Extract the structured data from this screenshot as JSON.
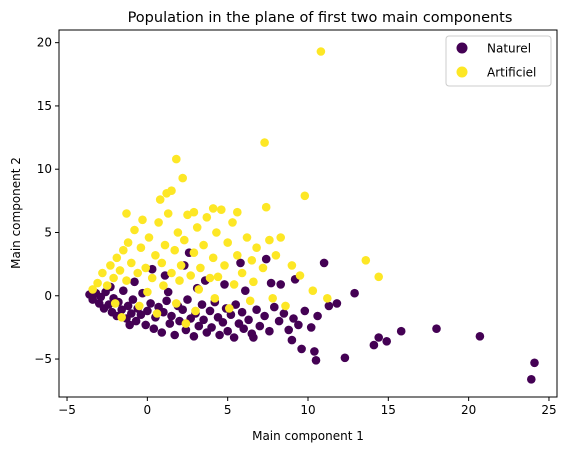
{
  "chart_data": {
    "type": "scatter",
    "title": "Population in the plane of first two main components",
    "xlabel": "Main component 1",
    "ylabel": "Main component 2",
    "xlim": [
      -5.5,
      25.5
    ],
    "ylim": [
      -8,
      21
    ],
    "xticks": [
      -5,
      0,
      5,
      10,
      15,
      20,
      25
    ],
    "yticks": [
      -5,
      0,
      5,
      10,
      15,
      20
    ],
    "grid": false,
    "legend_position": "top-right",
    "series": [
      {
        "name": "Naturel",
        "color": "#440154",
        "points": [
          [
            -3.6,
            0.1
          ],
          [
            -3.4,
            -0.3
          ],
          [
            -3.2,
            0.2
          ],
          [
            -3.0,
            -0.6
          ],
          [
            -2.9,
            -0.1
          ],
          [
            -2.7,
            -1.0
          ],
          [
            -2.6,
            0.3
          ],
          [
            -2.4,
            -0.7
          ],
          [
            -2.2,
            -1.3
          ],
          [
            -2.1,
            -0.2
          ],
          [
            -1.9,
            -1.6
          ],
          [
            -1.8,
            -0.5
          ],
          [
            -1.6,
            -1.1
          ],
          [
            -1.5,
            0.4
          ],
          [
            -1.3,
            -1.8
          ],
          [
            -1.2,
            -0.8
          ],
          [
            -1.0,
            -1.4
          ],
          [
            -0.9,
            -0.3
          ],
          [
            -0.7,
            -2.0
          ],
          [
            -0.6,
            -1.0
          ],
          [
            -0.4,
            -1.5
          ],
          [
            -0.3,
            0.2
          ],
          [
            -0.1,
            -2.3
          ],
          [
            0.0,
            -1.2
          ],
          [
            0.2,
            -0.6
          ],
          [
            0.4,
            -2.6
          ],
          [
            0.5,
            -1.7
          ],
          [
            0.7,
            -0.9
          ],
          [
            0.9,
            -2.9
          ],
          [
            1.0,
            -1.3
          ],
          [
            1.2,
            -0.4
          ],
          [
            1.4,
            -2.2
          ],
          [
            1.5,
            -1.6
          ],
          [
            1.7,
            -3.1
          ],
          [
            1.9,
            -0.8
          ],
          [
            2.0,
            -2.0
          ],
          [
            2.2,
            -1.1
          ],
          [
            2.4,
            -2.7
          ],
          [
            2.5,
            -0.3
          ],
          [
            2.7,
            -1.8
          ],
          [
            2.9,
            -3.2
          ],
          [
            3.0,
            -1.4
          ],
          [
            3.2,
            -2.4
          ],
          [
            3.4,
            -0.7
          ],
          [
            3.5,
            -1.9
          ],
          [
            3.7,
            -2.9
          ],
          [
            3.9,
            -1.2
          ],
          [
            4.0,
            -2.5
          ],
          [
            4.2,
            -0.5
          ],
          [
            4.4,
            -1.7
          ],
          [
            4.5,
            -3.1
          ],
          [
            4.7,
            -2.1
          ],
          [
            4.9,
            -1.0
          ],
          [
            5.0,
            -2.8
          ],
          [
            5.2,
            -1.5
          ],
          [
            5.4,
            -3.3
          ],
          [
            5.5,
            -0.7
          ],
          [
            5.7,
            -2.2
          ],
          [
            5.9,
            -1.3
          ],
          [
            6.0,
            -2.6
          ],
          [
            6.3,
            -1.9
          ],
          [
            6.5,
            -3.0
          ],
          [
            6.8,
            -1.1
          ],
          [
            7.0,
            -2.4
          ],
          [
            7.3,
            -1.6
          ],
          [
            7.6,
            -2.8
          ],
          [
            7.9,
            -0.9
          ],
          [
            8.2,
            -2.0
          ],
          [
            8.5,
            -1.4
          ],
          [
            8.8,
            -2.7
          ],
          [
            9.1,
            -1.8
          ],
          [
            9.4,
            -2.3
          ],
          [
            9.8,
            -1.2
          ],
          [
            10.2,
            -2.5
          ],
          [
            10.6,
            -1.6
          ],
          [
            6.6,
            -3.3
          ],
          [
            9.0,
            -3.5
          ],
          [
            9.6,
            -4.2
          ],
          [
            10.5,
            -5.1
          ],
          [
            10.4,
            -4.4
          ],
          [
            8.3,
            0.9
          ],
          [
            9.2,
            1.3
          ],
          [
            11.0,
            2.6
          ],
          [
            11.3,
            -0.8
          ],
          [
            11.8,
            -0.6
          ],
          [
            12.3,
            -4.9
          ],
          [
            12.9,
            0.2
          ],
          [
            14.1,
            -3.9
          ],
          [
            14.4,
            -3.3
          ],
          [
            14.9,
            -3.6
          ],
          [
            15.8,
            -2.8
          ],
          [
            18.0,
            -2.6
          ],
          [
            20.7,
            -3.2
          ],
          [
            24.1,
            -5.3
          ],
          [
            23.9,
            -6.6
          ],
          [
            0.3,
            2.1
          ],
          [
            1.1,
            1.6
          ],
          [
            2.3,
            2.4
          ],
          [
            3.6,
            1.2
          ],
          [
            -2.3,
            0.7
          ],
          [
            -0.8,
            1.1
          ],
          [
            4.8,
            0.9
          ],
          [
            6.1,
            0.4
          ],
          [
            7.7,
            1.0
          ],
          [
            2.6,
            3.4
          ],
          [
            5.8,
            2.6
          ],
          [
            7.4,
            2.9
          ],
          [
            3.1,
            0.6
          ],
          [
            1.3,
            0.3
          ],
          [
            -1.1,
            -2.3
          ]
        ]
      },
      {
        "name": "Artificiel",
        "color": "#fde725",
        "points": [
          [
            -3.1,
            1.0
          ],
          [
            -2.8,
            1.8
          ],
          [
            -2.5,
            0.8
          ],
          [
            -2.3,
            2.4
          ],
          [
            -2.1,
            1.4
          ],
          [
            -1.9,
            3.0
          ],
          [
            -1.7,
            2.0
          ],
          [
            -1.5,
            3.6
          ],
          [
            -1.3,
            1.2
          ],
          [
            -1.2,
            4.2
          ],
          [
            -1.0,
            2.6
          ],
          [
            -0.8,
            5.2
          ],
          [
            -0.6,
            1.8
          ],
          [
            -0.4,
            3.8
          ],
          [
            -0.3,
            6.0
          ],
          [
            -0.1,
            2.2
          ],
          [
            0.1,
            4.6
          ],
          [
            0.3,
            1.4
          ],
          [
            0.5,
            3.2
          ],
          [
            0.7,
            5.8
          ],
          [
            0.9,
            2.6
          ],
          [
            1.1,
            4.0
          ],
          [
            1.3,
            6.5
          ],
          [
            1.5,
            1.8
          ],
          [
            1.7,
            3.6
          ],
          [
            1.9,
            5.0
          ],
          [
            2.1,
            2.4
          ],
          [
            2.3,
            4.4
          ],
          [
            2.5,
            6.4
          ],
          [
            2.7,
            1.6
          ],
          [
            2.9,
            3.4
          ],
          [
            3.1,
            5.4
          ],
          [
            3.3,
            2.2
          ],
          [
            3.5,
            4.0
          ],
          [
            3.7,
            6.2
          ],
          [
            3.9,
            1.4
          ],
          [
            4.1,
            3.0
          ],
          [
            4.3,
            5.0
          ],
          [
            4.6,
            6.8
          ],
          [
            4.8,
            2.4
          ],
          [
            5.0,
            4.2
          ],
          [
            5.3,
            5.8
          ],
          [
            5.6,
            3.2
          ],
          [
            5.9,
            1.8
          ],
          [
            6.2,
            4.6
          ],
          [
            6.5,
            2.8
          ],
          [
            6.8,
            3.8
          ],
          [
            7.2,
            2.2
          ],
          [
            7.6,
            4.4
          ],
          [
            8.0,
            3.2
          ],
          [
            -0.5,
            -0.8
          ],
          [
            0.6,
            -1.4
          ],
          [
            1.8,
            -0.6
          ],
          [
            3.0,
            -1.2
          ],
          [
            4.2,
            -0.2
          ],
          [
            5.1,
            -1.0
          ],
          [
            6.4,
            -0.4
          ],
          [
            7.8,
            -0.2
          ],
          [
            8.6,
            -0.8
          ],
          [
            9.5,
            1.6
          ],
          [
            10.3,
            0.4
          ],
          [
            11.2,
            -0.2
          ],
          [
            9.0,
            2.4
          ],
          [
            8.3,
            4.6
          ],
          [
            7.3,
            12.1
          ],
          [
            9.8,
            7.9
          ],
          [
            10.8,
            19.3
          ],
          [
            1.8,
            10.8
          ],
          [
            2.2,
            9.3
          ],
          [
            1.5,
            8.3
          ],
          [
            1.2,
            8.1
          ],
          [
            -1.3,
            6.5
          ],
          [
            0.8,
            7.6
          ],
          [
            2.9,
            6.6
          ],
          [
            4.1,
            6.9
          ],
          [
            5.6,
            6.6
          ],
          [
            7.4,
            7.0
          ],
          [
            13.6,
            2.8
          ],
          [
            14.4,
            1.5
          ],
          [
            -3.4,
            0.5
          ],
          [
            -2.0,
            -0.6
          ],
          [
            0.0,
            0.3
          ],
          [
            1.0,
            0.8
          ],
          [
            2.0,
            1.2
          ],
          [
            3.2,
            0.5
          ],
          [
            4.4,
            1.5
          ],
          [
            5.4,
            0.9
          ],
          [
            6.6,
            1.1
          ],
          [
            -1.6,
            -1.7
          ],
          [
            2.4,
            -2.2
          ]
        ]
      }
    ]
  }
}
